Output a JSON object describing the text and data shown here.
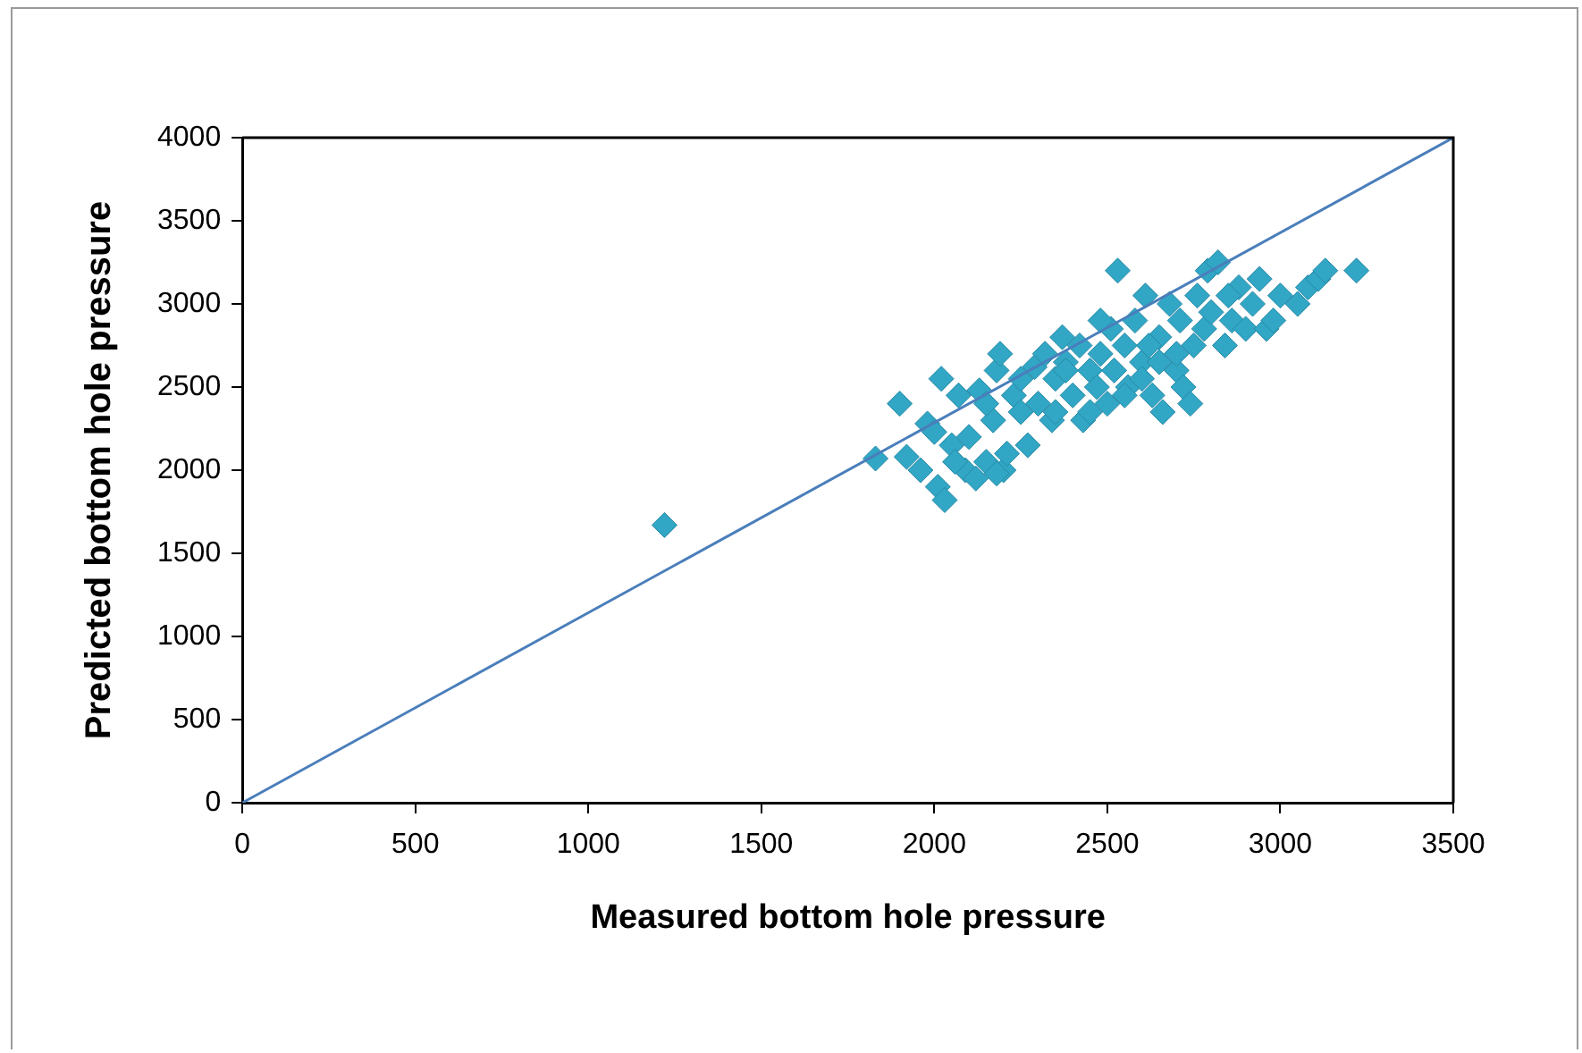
{
  "chart_data": {
    "type": "scatter",
    "xlabel": "Measured bottom hole pressure",
    "ylabel": "Predicted bottom hole pressure",
    "xlim": [
      0,
      3500
    ],
    "ylim": [
      0,
      4000
    ],
    "xticks": [
      0,
      500,
      1000,
      1500,
      2000,
      2500,
      3000,
      3500
    ],
    "yticks": [
      0,
      500,
      1000,
      1500,
      2000,
      2500,
      3000,
      3500,
      4000
    ],
    "grid": false,
    "legend": false,
    "series": [
      {
        "color": "#31a6c5",
        "marker": "diamond",
        "x": [
          1220,
          1830,
          1900,
          1920,
          1960,
          1980,
          2000,
          2010,
          2030,
          2020,
          2050,
          2070,
          2090,
          2100,
          2120,
          2130,
          2150,
          2170,
          2180,
          2190,
          2200,
          2210,
          2230,
          2250,
          2270,
          2290,
          2300,
          2320,
          2340,
          2350,
          2370,
          2380,
          2400,
          2420,
          2430,
          2450,
          2470,
          2480,
          2500,
          2510,
          2520,
          2530,
          2550,
          2560,
          2580,
          2600,
          2610,
          2630,
          2650,
          2660,
          2680,
          2700,
          2710,
          2720,
          2740,
          2750,
          2760,
          2780,
          2790,
          2800,
          2820,
          2840,
          2860,
          2880,
          2900,
          2920,
          2940,
          2960,
          2980,
          3050,
          3080,
          3110,
          3130,
          3220,
          2450,
          2350,
          2600,
          2700,
          2550,
          2480,
          2650,
          2250,
          2150,
          2060,
          2180,
          2380,
          2620,
          2850,
          3000
        ],
        "values": [
          1670,
          2070,
          2400,
          2080,
          2000,
          2280,
          2230,
          1900,
          1820,
          2550,
          2150,
          2450,
          2000,
          2200,
          1950,
          2480,
          2050,
          2300,
          2600,
          2700,
          2000,
          2100,
          2450,
          2550,
          2150,
          2620,
          2400,
          2700,
          2300,
          2550,
          2800,
          2650,
          2450,
          2750,
          2300,
          2600,
          2500,
          2700,
          2400,
          2850,
          2600,
          3200,
          2750,
          2500,
          2900,
          2650,
          3050,
          2450,
          2800,
          2350,
          3000,
          2600,
          2900,
          2500,
          2400,
          2750,
          3050,
          2850,
          3200,
          2950,
          3250,
          2750,
          2900,
          3100,
          2850,
          3000,
          3150,
          2850,
          2900,
          3000,
          3100,
          3150,
          3200,
          3200,
          2350,
          2350,
          2550,
          2700,
          2450,
          2900,
          2650,
          2350,
          2400,
          2050,
          1980,
          2600,
          2750,
          3050,
          3050
        ]
      },
      {
        "type": "line",
        "color": "#4a7ebb",
        "marker": "none",
        "x": [
          0,
          3500
        ],
        "values": [
          0,
          4000
        ]
      }
    ]
  }
}
